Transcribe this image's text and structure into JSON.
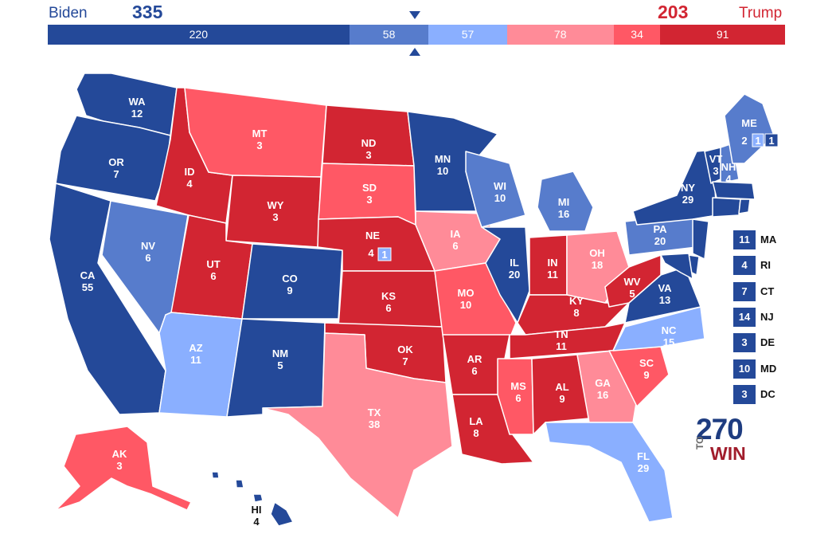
{
  "header": {
    "left_name": "Biden",
    "left_total": "335",
    "right_name": "Trump",
    "right_total": "203"
  },
  "colors": {
    "safe_d": "#244999",
    "likely_d": "#577ccc",
    "lean_d": "#8aafff",
    "lean_r": "#ff8b98",
    "likely_r": "#ff5865",
    "safe_r": "#d22532",
    "biden_text": "#244999",
    "trump_text": "#d22532"
  },
  "bar": [
    {
      "value": 220,
      "rating": "safe_d"
    },
    {
      "value": 58,
      "rating": "likely_d"
    },
    {
      "value": 57,
      "rating": "lean_d"
    },
    {
      "value": 78,
      "rating": "lean_r"
    },
    {
      "value": 34,
      "rating": "likely_r"
    },
    {
      "value": 91,
      "rating": "safe_r"
    }
  ],
  "states": {
    "WA": {
      "abbr": "WA",
      "ev": "12",
      "rating": "safe_d"
    },
    "OR": {
      "abbr": "OR",
      "ev": "7",
      "rating": "safe_d"
    },
    "CA": {
      "abbr": "CA",
      "ev": "55",
      "rating": "safe_d"
    },
    "NV": {
      "abbr": "NV",
      "ev": "6",
      "rating": "likely_d"
    },
    "ID": {
      "abbr": "ID",
      "ev": "4",
      "rating": "safe_r"
    },
    "MT": {
      "abbr": "MT",
      "ev": "3",
      "rating": "likely_r"
    },
    "WY": {
      "abbr": "WY",
      "ev": "3",
      "rating": "safe_r"
    },
    "UT": {
      "abbr": "UT",
      "ev": "6",
      "rating": "safe_r"
    },
    "AZ": {
      "abbr": "AZ",
      "ev": "11",
      "rating": "lean_d"
    },
    "CO": {
      "abbr": "CO",
      "ev": "9",
      "rating": "safe_d"
    },
    "NM": {
      "abbr": "NM",
      "ev": "5",
      "rating": "safe_d"
    },
    "ND": {
      "abbr": "ND",
      "ev": "3",
      "rating": "safe_r"
    },
    "SD": {
      "abbr": "SD",
      "ev": "3",
      "rating": "likely_r"
    },
    "NE": {
      "abbr": "NE",
      "ev": "4",
      "rating": "safe_r",
      "district_ev": "1",
      "district_rating": "lean_d"
    },
    "KS": {
      "abbr": "KS",
      "ev": "6",
      "rating": "safe_r"
    },
    "OK": {
      "abbr": "OK",
      "ev": "7",
      "rating": "safe_r"
    },
    "TX": {
      "abbr": "TX",
      "ev": "38",
      "rating": "lean_r"
    },
    "MN": {
      "abbr": "MN",
      "ev": "10",
      "rating": "safe_d"
    },
    "IA": {
      "abbr": "IA",
      "ev": "6",
      "rating": "lean_r"
    },
    "MO": {
      "abbr": "MO",
      "ev": "10",
      "rating": "likely_r"
    },
    "AR": {
      "abbr": "AR",
      "ev": "6",
      "rating": "safe_r"
    },
    "LA": {
      "abbr": "LA",
      "ev": "8",
      "rating": "safe_r"
    },
    "WI": {
      "abbr": "WI",
      "ev": "10",
      "rating": "likely_d"
    },
    "IL": {
      "abbr": "IL",
      "ev": "20",
      "rating": "safe_d"
    },
    "MI": {
      "abbr": "MI",
      "ev": "16",
      "rating": "likely_d"
    },
    "IN": {
      "abbr": "IN",
      "ev": "11",
      "rating": "safe_r"
    },
    "OH": {
      "abbr": "OH",
      "ev": "18",
      "rating": "lean_r"
    },
    "KY": {
      "abbr": "KY",
      "ev": "8",
      "rating": "safe_r"
    },
    "TN": {
      "abbr": "TN",
      "ev": "11",
      "rating": "safe_r"
    },
    "MS": {
      "abbr": "MS",
      "ev": "6",
      "rating": "likely_r"
    },
    "AL": {
      "abbr": "AL",
      "ev": "9",
      "rating": "safe_r"
    },
    "GA": {
      "abbr": "GA",
      "ev": "16",
      "rating": "lean_r"
    },
    "FL": {
      "abbr": "FL",
      "ev": "29",
      "rating": "lean_d"
    },
    "SC": {
      "abbr": "SC",
      "ev": "9",
      "rating": "likely_r"
    },
    "NC": {
      "abbr": "NC",
      "ev": "15",
      "rating": "lean_d"
    },
    "VA": {
      "abbr": "VA",
      "ev": "13",
      "rating": "safe_d"
    },
    "WV": {
      "abbr": "WV",
      "ev": "5",
      "rating": "safe_r"
    },
    "PA": {
      "abbr": "PA",
      "ev": "20",
      "rating": "likely_d"
    },
    "NY": {
      "abbr": "NY",
      "ev": "29",
      "rating": "safe_d"
    },
    "VT": {
      "abbr": "VT",
      "ev": "3",
      "rating": "safe_d"
    },
    "NH": {
      "abbr": "NH",
      "ev": "4",
      "rating": "likely_d"
    },
    "ME": {
      "abbr": "ME",
      "ev": "2",
      "rating": "likely_d",
      "d1_ev": "1",
      "d1_rating": "lean_d",
      "d2_ev": "1",
      "d2_rating": "safe_d"
    },
    "AK": {
      "abbr": "AK",
      "ev": "3",
      "rating": "likely_r"
    },
    "HI": {
      "abbr": "HI",
      "ev": "4",
      "rating": "safe_d"
    }
  },
  "small_states": [
    {
      "abbr": "MA",
      "ev": "11",
      "rating": "safe_d"
    },
    {
      "abbr": "RI",
      "ev": "4",
      "rating": "safe_d"
    },
    {
      "abbr": "CT",
      "ev": "7",
      "rating": "safe_d"
    },
    {
      "abbr": "NJ",
      "ev": "14",
      "rating": "safe_d"
    },
    {
      "abbr": "DE",
      "ev": "3",
      "rating": "safe_d"
    },
    {
      "abbr": "MD",
      "ev": "10",
      "rating": "safe_d"
    },
    {
      "abbr": "DC",
      "ev": "3",
      "rating": "safe_d"
    }
  ],
  "logo": {
    "number": "270",
    "to": "TO",
    "win": "WIN"
  }
}
